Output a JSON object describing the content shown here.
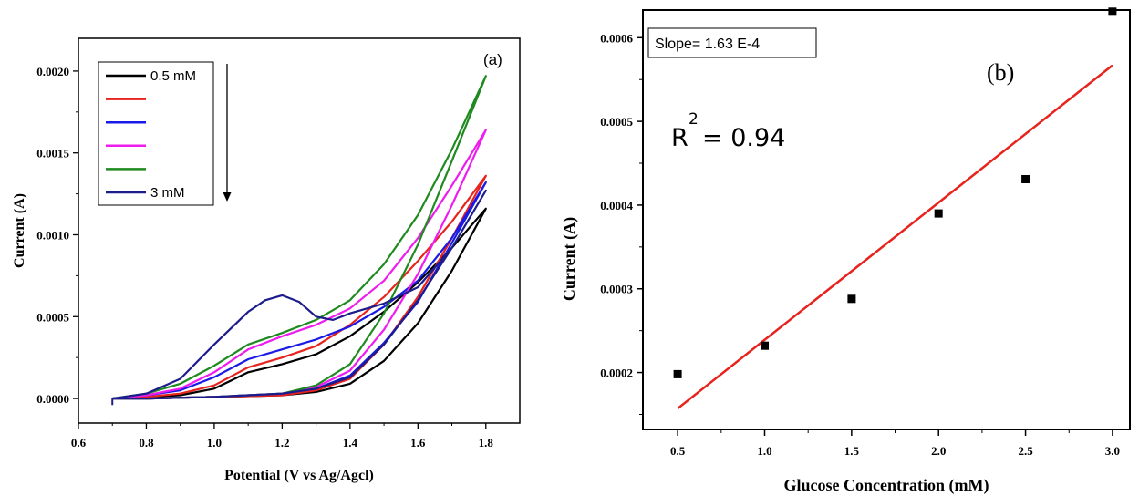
{
  "chart_data": [
    {
      "type": "line",
      "panel_label": "(a)",
      "xlabel": "Potential (V vs Ag/Agcl)",
      "ylabel": "Current (A)",
      "xlim": [
        0.6,
        1.9
      ],
      "ylim": [
        -0.00015,
        0.0022
      ],
      "x_ticks": [
        "0.6",
        "0.8",
        "1.0",
        "1.2",
        "1.4",
        "1.6",
        "1.8"
      ],
      "y_ticks": [
        "0.0000",
        "0.0005",
        "0.0010",
        "0.0015",
        "0.0020"
      ],
      "legend_position": "top-left",
      "legend_arrow": "down",
      "series": [
        {
          "name": "0.5 mM",
          "color": "#000000",
          "forward": [
            [
              0.7,
              0.0
            ],
            [
              0.8,
              1e-05
            ],
            [
              0.9,
              2e-05
            ],
            [
              1.0,
              6e-05
            ],
            [
              1.1,
              0.00016
            ],
            [
              1.2,
              0.00021
            ],
            [
              1.3,
              0.00027
            ],
            [
              1.4,
              0.00038
            ],
            [
              1.5,
              0.00053
            ],
            [
              1.6,
              0.00071
            ],
            [
              1.7,
              0.00092
            ],
            [
              1.8,
              0.00116
            ]
          ],
          "reverse": [
            [
              1.8,
              0.00116
            ],
            [
              1.7,
              0.00078
            ],
            [
              1.6,
              0.00046
            ],
            [
              1.5,
              0.00023
            ],
            [
              1.4,
              9e-05
            ],
            [
              1.3,
              4e-05
            ],
            [
              1.2,
              2e-05
            ],
            [
              1.0,
              1e-05
            ],
            [
              0.8,
              0.0
            ],
            [
              0.7,
              0.0
            ]
          ]
        },
        {
          "name": "",
          "color": "#e8221c",
          "forward": [
            [
              0.7,
              0.0
            ],
            [
              0.8,
              1e-05
            ],
            [
              0.9,
              3e-05
            ],
            [
              1.0,
              8e-05
            ],
            [
              1.1,
              0.00019
            ],
            [
              1.2,
              0.00025
            ],
            [
              1.3,
              0.00032
            ],
            [
              1.4,
              0.00045
            ],
            [
              1.5,
              0.00062
            ],
            [
              1.6,
              0.00084
            ],
            [
              1.7,
              0.00108
            ],
            [
              1.8,
              0.00136
            ]
          ],
          "reverse": [
            [
              1.8,
              0.00136
            ],
            [
              1.7,
              0.00098
            ],
            [
              1.6,
              0.00062
            ],
            [
              1.5,
              0.00033
            ],
            [
              1.4,
              0.00012
            ],
            [
              1.3,
              5e-05
            ],
            [
              1.2,
              2e-05
            ],
            [
              1.0,
              1e-05
            ],
            [
              0.8,
              0.0
            ],
            [
              0.7,
              0.0
            ]
          ]
        },
        {
          "name": "",
          "color": "#1a1ae6",
          "forward": [
            [
              0.7,
              0.0
            ],
            [
              0.8,
              2e-05
            ],
            [
              0.9,
              5e-05
            ],
            [
              1.0,
              0.00013
            ],
            [
              1.1,
              0.00024
            ],
            [
              1.2,
              0.0003
            ],
            [
              1.3,
              0.00036
            ],
            [
              1.4,
              0.00044
            ],
            [
              1.5,
              0.00056
            ],
            [
              1.6,
              0.00072
            ],
            [
              1.7,
              0.00098
            ],
            [
              1.8,
              0.00132
            ]
          ],
          "reverse": [
            [
              1.8,
              0.00132
            ],
            [
              1.7,
              0.00095
            ],
            [
              1.6,
              0.00059
            ],
            [
              1.5,
              0.00034
            ],
            [
              1.4,
              0.00014
            ],
            [
              1.3,
              6e-05
            ],
            [
              1.2,
              3e-05
            ],
            [
              1.0,
              1e-05
            ],
            [
              0.8,
              0.0
            ],
            [
              0.7,
              0.0
            ]
          ]
        },
        {
          "name": "",
          "color": "#ee1cee",
          "forward": [
            [
              0.7,
              0.0
            ],
            [
              0.8,
              2e-05
            ],
            [
              0.9,
              6e-05
            ],
            [
              1.0,
              0.00016
            ],
            [
              1.1,
              0.0003
            ],
            [
              1.2,
              0.00038
            ],
            [
              1.3,
              0.00045
            ],
            [
              1.4,
              0.00055
            ],
            [
              1.5,
              0.00072
            ],
            [
              1.6,
              0.00098
            ],
            [
              1.7,
              0.0013
            ],
            [
              1.8,
              0.00164
            ]
          ],
          "reverse": [
            [
              1.8,
              0.00164
            ],
            [
              1.7,
              0.00118
            ],
            [
              1.6,
              0.00076
            ],
            [
              1.5,
              0.00042
            ],
            [
              1.4,
              0.00017
            ],
            [
              1.3,
              7e-05
            ],
            [
              1.2,
              3e-05
            ],
            [
              1.0,
              1e-05
            ],
            [
              0.8,
              0.0
            ],
            [
              0.7,
              0.0
            ]
          ]
        },
        {
          "name": "",
          "color": "#1f8a1f",
          "forward": [
            [
              0.7,
              0.0
            ],
            [
              0.8,
              3e-05
            ],
            [
              0.9,
              9e-05
            ],
            [
              1.0,
              0.0002
            ],
            [
              1.1,
              0.00033
            ],
            [
              1.2,
              0.0004
            ],
            [
              1.3,
              0.00048
            ],
            [
              1.4,
              0.0006
            ],
            [
              1.5,
              0.00082
            ],
            [
              1.6,
              0.00112
            ],
            [
              1.7,
              0.00152
            ],
            [
              1.8,
              0.00197
            ]
          ],
          "reverse": [
            [
              1.8,
              0.00197
            ],
            [
              1.7,
              0.00145
            ],
            [
              1.6,
              0.00094
            ],
            [
              1.5,
              0.00052
            ],
            [
              1.4,
              0.00021
            ],
            [
              1.3,
              8e-05
            ],
            [
              1.2,
              3e-05
            ],
            [
              1.0,
              1e-05
            ],
            [
              0.8,
              0.0
            ],
            [
              0.7,
              0.0
            ]
          ]
        },
        {
          "name": "3 mM",
          "color": "#1c1c8c",
          "forward": [
            [
              0.7,
              0.0
            ],
            [
              0.8,
              3e-05
            ],
            [
              0.9,
              0.00012
            ],
            [
              1.0,
              0.00033
            ],
            [
              1.1,
              0.00053
            ],
            [
              1.15,
              0.0006
            ],
            [
              1.2,
              0.00063
            ],
            [
              1.25,
              0.00059
            ],
            [
              1.3,
              0.0005
            ],
            [
              1.35,
              0.00048
            ],
            [
              1.4,
              0.00052
            ],
            [
              1.5,
              0.00058
            ],
            [
              1.6,
              0.00068
            ],
            [
              1.7,
              0.00092
            ],
            [
              1.8,
              0.00127
            ]
          ],
          "reverse": [
            [
              1.8,
              0.00127
            ],
            [
              1.7,
              0.00092
            ],
            [
              1.6,
              0.0006
            ],
            [
              1.5,
              0.00033
            ],
            [
              1.4,
              0.00013
            ],
            [
              1.3,
              6e-05
            ],
            [
              1.2,
              3e-05
            ],
            [
              1.0,
              1e-05
            ],
            [
              0.8,
              0.0
            ],
            [
              0.7,
              0.0
            ]
          ]
        }
      ]
    },
    {
      "type": "scatter",
      "panel_label": "(b)",
      "xlabel": "Glucose Concentration (mM)",
      "ylabel": "Current (A)",
      "xlim": [
        0.3,
        3.1
      ],
      "ylim": [
        0.000132,
        0.000633
      ],
      "x_ticks": [
        "0.5",
        "1.0",
        "1.5",
        "2.0",
        "2.5",
        "3.0"
      ],
      "y_ticks": [
        "0.0002",
        "0.0003",
        "0.0004",
        "0.0005",
        "0.0006"
      ],
      "points": [
        [
          0.5,
          0.000198
        ],
        [
          1.0,
          0.000232
        ],
        [
          1.5,
          0.000288
        ],
        [
          2.0,
          0.00039
        ],
        [
          2.5,
          0.000431
        ],
        [
          3.0,
          0.000631
        ]
      ],
      "point_color": "#000000",
      "fit_line": {
        "x": [
          0.5,
          3.0
        ],
        "y": [
          0.000157,
          0.000567
        ],
        "color": "#e8221c"
      },
      "annotation": "Slope= 1.63 E-4",
      "r2": {
        "label": "R",
        "exponent": "2",
        "value": "= 0.94"
      }
    }
  ]
}
